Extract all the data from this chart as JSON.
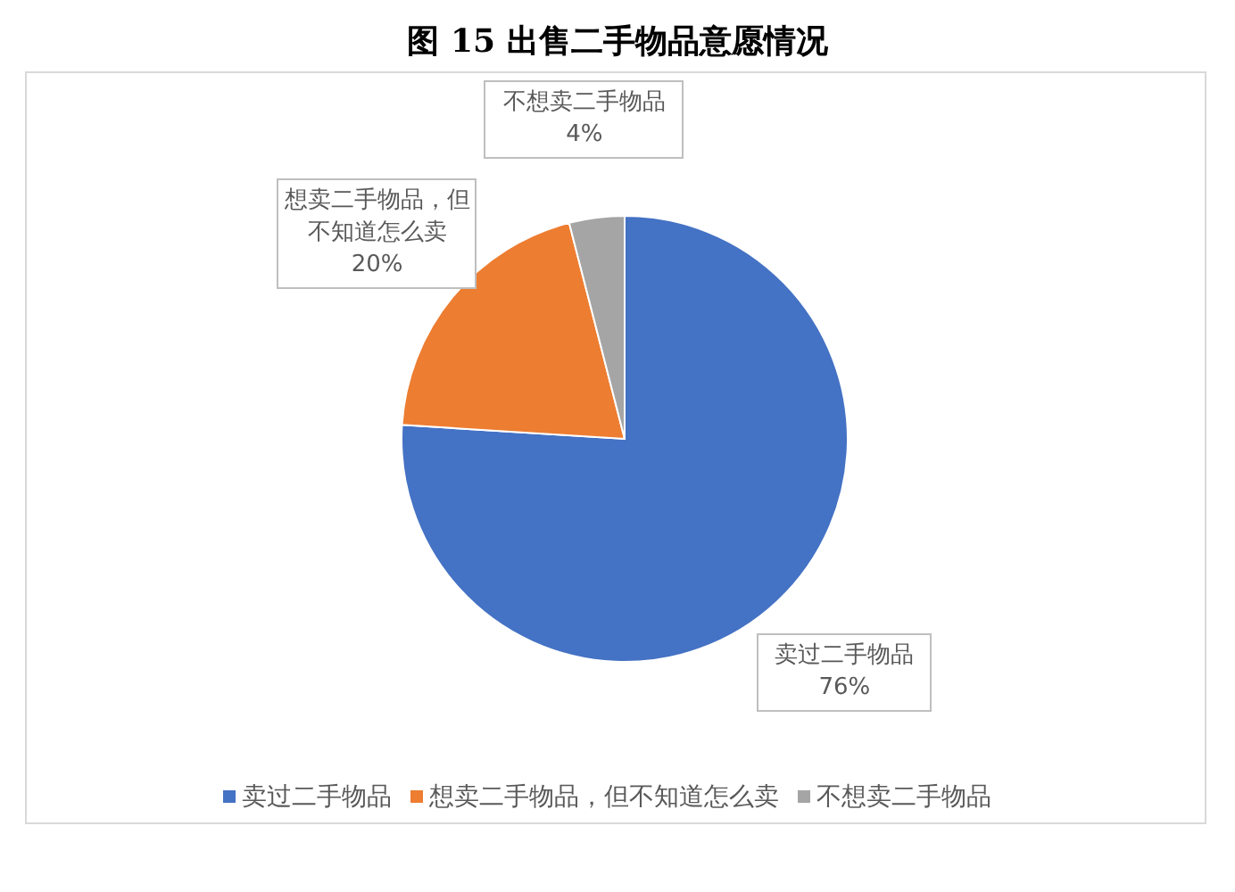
{
  "chart_data": {
    "type": "pie",
    "title": "图 15  出售二手物品意愿情况",
    "categories": [
      "卖过二手物品",
      "想卖二手物品，但不知道怎么卖",
      "不想卖二手物品"
    ],
    "values": [
      76,
      20,
      4
    ],
    "value_labels": [
      "76%",
      "20%",
      "4%"
    ],
    "colors": [
      "#4472c4",
      "#ed7d31",
      "#a5a5a5"
    ],
    "legend": "bottom"
  }
}
